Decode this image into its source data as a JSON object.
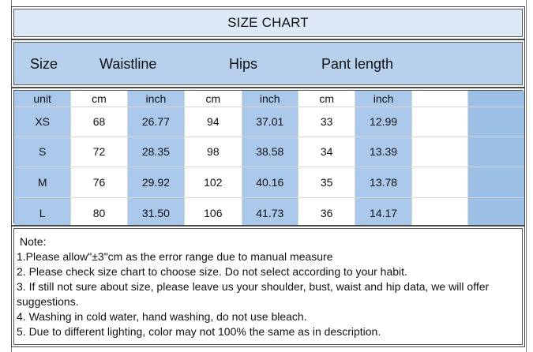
{
  "title": "SIZE CHART",
  "headers": {
    "size": "Size",
    "waist": "Waistline",
    "hips": "Hips",
    "pant": "Pant length"
  },
  "units": [
    "unit",
    "cm",
    "inch",
    "cm",
    "inch",
    "cm",
    "inch"
  ],
  "rows": [
    [
      "XS",
      "68",
      "26.77",
      "94",
      "37.01",
      "33",
      "12.99"
    ],
    [
      "S",
      "72",
      "28.35",
      "98",
      "38.58",
      "34",
      "13.39"
    ],
    [
      "M",
      "76",
      "29.92",
      "102",
      "40.16",
      "35",
      "13.78"
    ],
    [
      "L",
      "80",
      "31.50",
      "106",
      "41.73",
      "36",
      "14.17"
    ]
  ],
  "notes": {
    "title": "Note:",
    "items": [
      "1.Please allow\"±3\"cm as the error range due to manual measure",
      "2. Please check size chart to choose size. Do not select according to your habit.",
      "3. If still not sure about size, please leave us your shoulder, bust, waist and hip data, we will offer suggestions.",
      "4. Washing in cold water, hand washing, do not use bleach.",
      "5. Due to different lighting, color may not 100% the same as in description."
    ]
  },
  "colors": {
    "title_band": "#dde9f6",
    "header_band": "#b7d0ec",
    "blue_column": "#a9c8ea",
    "white_column": "#ffffff"
  }
}
